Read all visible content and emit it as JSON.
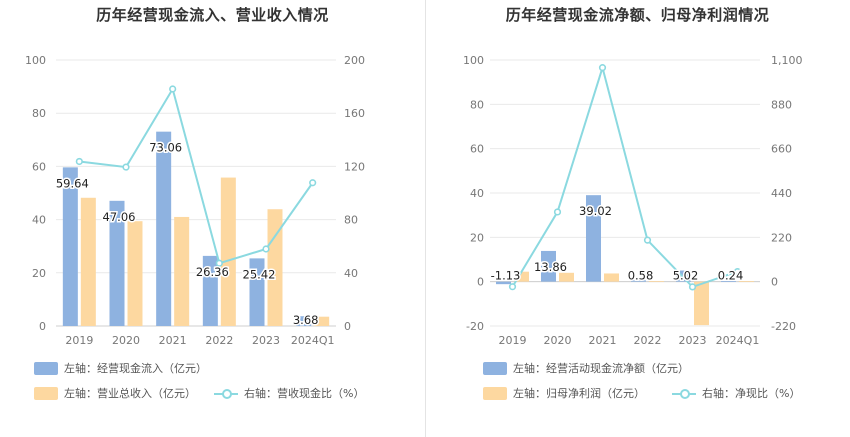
{
  "colors": {
    "bar_left": "#8eb2e0",
    "bar_right": "#fdd8a0",
    "line": "#8bd9e0",
    "grid": "#e9e9e9",
    "axis_text": "#777777"
  },
  "chart_data": [
    {
      "type": "bar-line",
      "title": "历年经营现金流入、营业收入情况",
      "categories": [
        "2019",
        "2020",
        "2021",
        "2022",
        "2023",
        "2024Q1"
      ],
      "y_left": {
        "min": 0,
        "max": 100,
        "ticks": [
          "0",
          "20",
          "40",
          "60",
          "80",
          "100"
        ]
      },
      "y_right": {
        "min": 0,
        "max": 200,
        "ticks": [
          "0",
          "40",
          "80",
          "120",
          "160",
          "200"
        ]
      },
      "series": [
        {
          "name": "左轴：经营现金流入（亿元）",
          "kind": "bar",
          "axis": "left",
          "values": [
            59.64,
            47.06,
            73.06,
            26.36,
            25.42,
            3.68
          ],
          "labels": [
            "59.64",
            "47.06",
            "73.06",
            "26.36",
            "25.42",
            "3.68"
          ]
        },
        {
          "name": "左轴：营业总收入（亿元）",
          "kind": "bar",
          "axis": "left",
          "values": [
            48.2,
            39.4,
            41.0,
            55.8,
            43.9,
            3.5
          ]
        },
        {
          "name": "右轴：营收现金比（%）",
          "kind": "line",
          "axis": "right",
          "values": [
            123.7,
            119.5,
            178.2,
            47.2,
            57.9,
            107.7
          ]
        }
      ],
      "legend": [
        "左轴：经营现金流入（亿元）",
        "左轴：营业总收入（亿元）",
        "右轴：营收现金比（%）"
      ],
      "legend_position": "bottom-left",
      "grid": true
    },
    {
      "type": "bar-line",
      "title": "历年经营现金流净额、归母净利润情况",
      "categories": [
        "2019",
        "2020",
        "2021",
        "2022",
        "2023",
        "2024Q1"
      ],
      "y_left": {
        "min": -20,
        "max": 100,
        "ticks": [
          "-20",
          "0",
          "20",
          "40",
          "60",
          "80",
          "100"
        ]
      },
      "y_right": {
        "min": -220,
        "max": 1100,
        "ticks": [
          "-220",
          "0",
          "220",
          "440",
          "660",
          "880",
          "1,100"
        ]
      },
      "series": [
        {
          "name": "左轴：经营活动现金流净额（亿元）",
          "kind": "bar",
          "axis": "left",
          "values": [
            -1.13,
            13.86,
            39.02,
            0.58,
            5.02,
            0.24
          ],
          "labels": [
            "-1.13",
            "13.86",
            "39.02",
            "0.58",
            "5.02",
            "0.24"
          ]
        },
        {
          "name": "左轴：归母净利润（亿元）",
          "kind": "bar",
          "axis": "left",
          "values": [
            4.5,
            4.0,
            3.7,
            0.25,
            -19.6,
            0.3
          ]
        },
        {
          "name": "右轴：净现比（%）",
          "kind": "line",
          "axis": "right",
          "values": [
            -25,
            346,
            1062,
            206,
            -26,
            50
          ]
        }
      ],
      "legend": [
        "左轴：经营活动现金流净额（亿元）",
        "左轴：归母净利润（亿元）",
        "右轴：净现比（%）"
      ],
      "legend_position": "bottom-left",
      "grid": true
    }
  ]
}
